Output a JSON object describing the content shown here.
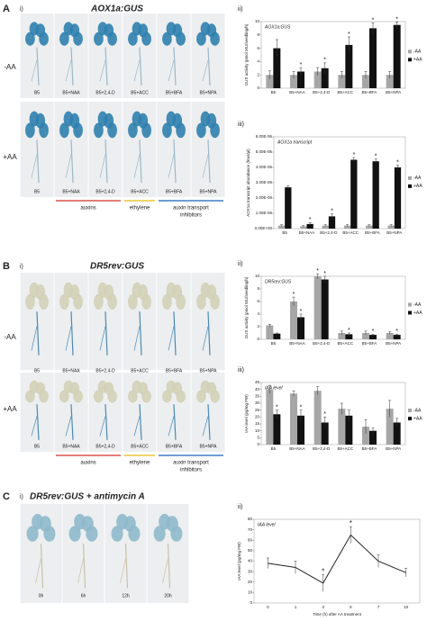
{
  "figure": {
    "panels": [
      {
        "letter": "A",
        "sub": "i)",
        "title": "AOX1a:GUS",
        "rows": [
          "-AA",
          "+AA"
        ],
        "cells": [
          "B5",
          "B5+NAA",
          "B5+2,4-D",
          "B5+ACC",
          "B5+BFA",
          "B5+NPA"
        ],
        "groups": [
          {
            "lines": [
              "auxins"
            ],
            "color": "#d9534f"
          },
          {
            "lines": [
              "ethylene"
            ],
            "color": "#e8c53a"
          },
          {
            "lines": [
              "auxin transport",
              "inhibitors"
            ],
            "color": "#3d7cc9"
          }
        ]
      },
      {
        "letter": "B",
        "sub": "i)",
        "title": "DR5rev:GUS",
        "rows": [
          "-AA",
          "+AA"
        ],
        "cells": [
          "B5",
          "B5+NAA",
          "B5+2,4-D",
          "B5+ACC",
          "B5+BFA",
          "B5+NPA"
        ],
        "groups": [
          {
            "lines": [
              "auxins"
            ],
            "color": "#d9534f"
          },
          {
            "lines": [
              "ethylene"
            ],
            "color": "#e8c53a"
          },
          {
            "lines": [
              "auxin transport",
              "inhibitors"
            ],
            "color": "#3d7cc9"
          }
        ]
      },
      {
        "letter": "C",
        "sub": "i)",
        "title": "DR5rev:GUS + antimycin A",
        "rows": [],
        "cells": [
          "0h",
          "6h",
          "12h",
          "20h"
        ],
        "groups": []
      }
    ]
  },
  "chart_data": [
    {
      "type": "bar",
      "panel": "ii)",
      "title": "AOX1a:GUS",
      "ylabel": "GUS activity (pmol MU/seedling/h)",
      "categories": [
        "B5",
        "B5+NAA",
        "B5+2,4-D",
        "B5+ACC",
        "B5+BFA",
        "B5+NPA"
      ],
      "series": [
        {
          "name": "-AA",
          "color": "#a6a6a6",
          "values": [
            2,
            2,
            2.5,
            2,
            2,
            2
          ],
          "errors": [
            0.6,
            0.5,
            0.6,
            0.5,
            0.5,
            0.5
          ],
          "sig": [
            false,
            false,
            false,
            false,
            false,
            false
          ]
        },
        {
          "name": "+AA",
          "color": "#111111",
          "values": [
            6,
            2.5,
            3,
            6.5,
            9,
            9.5
          ],
          "errors": [
            1.3,
            0.6,
            0.8,
            1.2,
            0.8,
            0.4
          ],
          "sig": [
            false,
            true,
            true,
            true,
            true,
            true
          ]
        }
      ],
      "ylim": [
        0,
        10
      ],
      "yticks": [
        0,
        2,
        4,
        6,
        8,
        10
      ],
      "sig_label": "*"
    },
    {
      "type": "bar",
      "panel": "iii)",
      "title": "AOX1a transcript",
      "ylabel": "AOX1a transcript abundance (fmol/µl)",
      "categories": [
        "B5",
        "B5+NAA",
        "B5+2,4-D",
        "B5+ACC",
        "B5+BFA",
        "B5+NPA"
      ],
      "series": [
        {
          "name": "-AA",
          "color": "#a6a6a6",
          "values": [
            2e-07,
            1.5e-07,
            2e-07,
            2e-07,
            2e-07,
            2e-07
          ],
          "errors": [
            5e-08,
            5e-08,
            5e-08,
            5e-08,
            5e-08,
            5e-08
          ],
          "sig": [
            false,
            false,
            false,
            false,
            false,
            false
          ]
        },
        {
          "name": "+AA",
          "color": "#111111",
          "values": [
            2.7e-06,
            3e-07,
            8e-07,
            4.5e-06,
            4.4e-06,
            4e-06
          ],
          "errors": [
            1e-07,
            1e-07,
            1.5e-07,
            1.5e-07,
            1.5e-07,
            1.5e-07
          ],
          "sig": [
            false,
            true,
            true,
            true,
            true,
            true
          ]
        }
      ],
      "ylim": [
        0,
        6e-06
      ],
      "yticks": [
        {
          "value": 0,
          "label": "0.00E+00"
        },
        {
          "value": 1e-06,
          "label": "1.00E-06"
        },
        {
          "value": 2e-06,
          "label": "2.00E-06"
        },
        {
          "value": 3e-06,
          "label": "3.00E-06"
        },
        {
          "value": 4e-06,
          "label": "4.00E-06"
        },
        {
          "value": 5e-06,
          "label": "5.00E-06"
        },
        {
          "value": 6e-06,
          "label": "6.00E-06"
        }
      ],
      "sig_label": "*"
    },
    {
      "type": "bar",
      "panel": "ii)",
      "title": "DR5rev:GUS",
      "ylabel": "GUS activity (pmol MU/seedling/h)",
      "categories": [
        "B5",
        "B5+NAA",
        "B5+2,4-D",
        "B5+ACC",
        "B5+BFA",
        "B5+NPA"
      ],
      "series": [
        {
          "name": "-AA",
          "color": "#a6a6a6",
          "values": [
            2.2,
            6,
            10,
            1,
            1,
            1
          ],
          "errors": [
            0.2,
            0.7,
            0.4,
            0.3,
            0.3,
            0.2
          ],
          "sig": [
            false,
            true,
            true,
            false,
            false,
            false
          ]
        },
        {
          "name": "+AA",
          "color": "#111111",
          "values": [
            0.9,
            3.5,
            9.5,
            0.8,
            0.7,
            0.7
          ],
          "errors": [
            0.1,
            0.5,
            0.5,
            0.2,
            0.1,
            0.1
          ],
          "sig": [
            false,
            true,
            true,
            true,
            true,
            true
          ]
        }
      ],
      "ylim": [
        0,
        10
      ],
      "yticks": [
        0,
        2,
        4,
        6,
        8,
        10
      ],
      "sig_label": "*"
    },
    {
      "type": "bar",
      "panel": "iii)",
      "title": "IAA level",
      "ylabel": "IAA level (pg/mg FW)",
      "categories": [
        "B5",
        "B5+NAA",
        "B5+2,4-D",
        "B5+ACC",
        "B5+BFA",
        "B5+NPA"
      ],
      "series": [
        {
          "name": "-AA",
          "color": "#a6a6a6",
          "values": [
            40,
            37,
            39,
            26,
            13,
            26
          ],
          "errors": [
            3,
            2,
            3,
            4,
            5,
            6
          ],
          "sig": [
            false,
            false,
            false,
            false,
            false,
            false
          ]
        },
        {
          "name": "+AA",
          "color": "#111111",
          "values": [
            22,
            21,
            16,
            21,
            10,
            16
          ],
          "errors": [
            3,
            4,
            4,
            4,
            2,
            3
          ],
          "sig": [
            true,
            true,
            true,
            false,
            false,
            false
          ]
        }
      ],
      "ylim": [
        0,
        45
      ],
      "yticks": [
        0,
        5,
        10,
        15,
        20,
        25,
        30,
        35,
        40,
        45
      ],
      "sig_label": "*"
    },
    {
      "type": "line",
      "panel": "ii)",
      "title": "IAA level",
      "ylabel": "IAA level (pg/mg FW)",
      "xlabel": "Time (h) after AA treatment",
      "categories": [
        "0",
        "1",
        "3",
        "5",
        "7",
        "10"
      ],
      "values": [
        38,
        34,
        19,
        65,
        40,
        29
      ],
      "errors": [
        5,
        6,
        8,
        8,
        6,
        4
      ],
      "sig": [
        false,
        false,
        true,
        true,
        false,
        false
      ],
      "color": "#222222",
      "ylim": [
        0,
        80
      ],
      "yticks": [
        0,
        10,
        20,
        30,
        40,
        50,
        60,
        70,
        80
      ],
      "sig_label": "*"
    }
  ]
}
